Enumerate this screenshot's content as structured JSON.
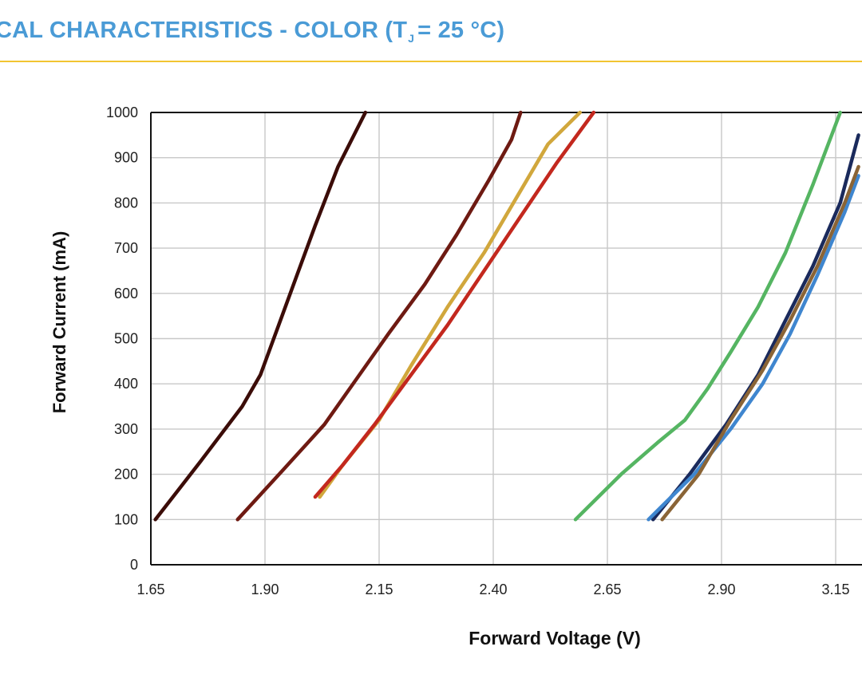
{
  "header": {
    "title_main": "CAL CHARACTERISTICS - COLOR (T",
    "title_sub": "J",
    "title_end": "= 25 °C)"
  },
  "colors": {
    "title": "#4a9bd6",
    "rule": "#f2c532"
  },
  "chart_data": {
    "type": "line",
    "title": "",
    "xlabel": "Forward Voltage (V)",
    "ylabel": "Forward Current (mA)",
    "xlim": [
      1.65,
      3.18
    ],
    "ylim": [
      0,
      1000
    ],
    "x_ticks": [
      "1.65",
      "1.90",
      "2.15",
      "2.40",
      "2.65",
      "2.90",
      "3.15"
    ],
    "y_ticks": [
      "0",
      "100",
      "200",
      "300",
      "400",
      "500",
      "600",
      "700",
      "800",
      "900",
      "1000"
    ],
    "grid": true,
    "series": [
      {
        "name": "dark-red",
        "color": "#3b0c08",
        "points": [
          [
            1.66,
            100
          ],
          [
            1.76,
            230
          ],
          [
            1.85,
            350
          ],
          [
            1.89,
            420
          ],
          [
            1.93,
            530
          ],
          [
            1.97,
            640
          ],
          [
            2.01,
            750
          ],
          [
            2.06,
            880
          ],
          [
            2.12,
            1000
          ]
        ]
      },
      {
        "name": "deep-red",
        "color": "#6e1a12",
        "points": [
          [
            1.84,
            100
          ],
          [
            1.94,
            210
          ],
          [
            2.03,
            310
          ],
          [
            2.1,
            410
          ],
          [
            2.17,
            510
          ],
          [
            2.25,
            620
          ],
          [
            2.32,
            730
          ],
          [
            2.39,
            850
          ],
          [
            2.44,
            940
          ],
          [
            2.46,
            1000
          ]
        ]
      },
      {
        "name": "amber",
        "color": "#d1a73c",
        "points": [
          [
            2.02,
            150
          ],
          [
            2.07,
            220
          ],
          [
            2.15,
            320
          ],
          [
            2.22,
            440
          ],
          [
            2.3,
            570
          ],
          [
            2.38,
            690
          ],
          [
            2.45,
            810
          ],
          [
            2.52,
            930
          ],
          [
            2.59,
            1000
          ]
        ]
      },
      {
        "name": "red",
        "color": "#c3281e",
        "points": [
          [
            2.01,
            150
          ],
          [
            2.07,
            220
          ],
          [
            2.14,
            310
          ],
          [
            2.22,
            420
          ],
          [
            2.3,
            530
          ],
          [
            2.38,
            650
          ],
          [
            2.46,
            770
          ],
          [
            2.54,
            890
          ],
          [
            2.62,
            1000
          ]
        ]
      },
      {
        "name": "green",
        "color": "#55b562",
        "points": [
          [
            2.58,
            100
          ],
          [
            2.68,
            200
          ],
          [
            2.76,
            270
          ],
          [
            2.82,
            320
          ],
          [
            2.87,
            390
          ],
          [
            2.92,
            470
          ],
          [
            2.98,
            570
          ],
          [
            3.04,
            690
          ],
          [
            3.1,
            840
          ],
          [
            3.16,
            1000
          ]
        ]
      },
      {
        "name": "navy",
        "color": "#1a2a5c",
        "points": [
          [
            2.75,
            100
          ],
          [
            2.83,
            200
          ],
          [
            2.91,
            310
          ],
          [
            2.98,
            420
          ],
          [
            3.04,
            540
          ],
          [
            3.1,
            660
          ],
          [
            3.16,
            800
          ],
          [
            3.2,
            950
          ]
        ]
      },
      {
        "name": "blue",
        "color": "#3f86cf",
        "points": [
          [
            2.74,
            100
          ],
          [
            2.84,
            200
          ],
          [
            2.92,
            300
          ],
          [
            2.99,
            400
          ],
          [
            3.05,
            510
          ],
          [
            3.11,
            640
          ],
          [
            3.17,
            780
          ],
          [
            3.2,
            860
          ]
        ]
      },
      {
        "name": "brown",
        "color": "#8a6436",
        "points": [
          [
            2.77,
            100
          ],
          [
            2.85,
            200
          ],
          [
            2.92,
            320
          ],
          [
            2.99,
            430
          ],
          [
            3.05,
            540
          ],
          [
            3.11,
            660
          ],
          [
            3.17,
            800
          ],
          [
            3.2,
            880
          ]
        ]
      }
    ]
  }
}
